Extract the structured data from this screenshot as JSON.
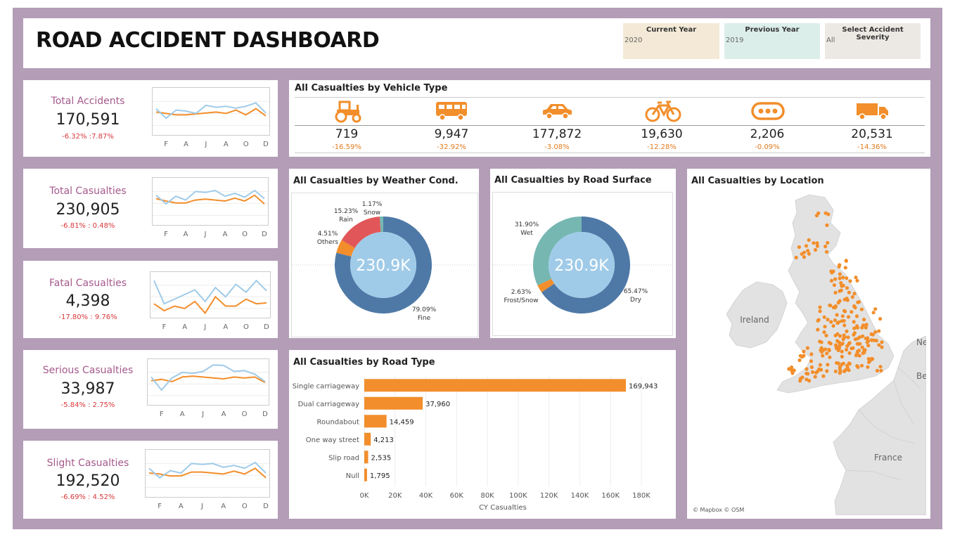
{
  "dashboard": {
    "title": "ROAD ACCIDENT DASHBOARD",
    "filters": [
      {
        "label": "Current Year",
        "value": "2020",
        "color": "#f3e9d6"
      },
      {
        "label": "Previous Year",
        "value": "2019",
        "color": "#dceeea"
      },
      {
        "label": "Select Accident Severity",
        "value": "All",
        "color": "#ece9e4"
      }
    ]
  },
  "colors": {
    "frame": "#b39db7",
    "orange": "#f28e2b",
    "blue": "#4e79a7",
    "light_blue": "#a0cbe8",
    "red": "#e15759",
    "teal": "#76b7b2",
    "kpi_name": "#a55a8c",
    "change": "#d9373a"
  },
  "kpis": [
    {
      "name": "Total Accidents",
      "value": "170,591",
      "change": "-6.32% :7.87%",
      "cy": [
        0.55,
        0.35,
        0.52,
        0.5,
        0.45,
        0.62,
        0.58,
        0.6,
        0.56,
        0.6,
        0.67,
        0.46
      ],
      "py": [
        0.48,
        0.45,
        0.42,
        0.42,
        0.44,
        0.46,
        0.48,
        0.45,
        0.52,
        0.42,
        0.55,
        0.4
      ]
    },
    {
      "name": "Total Casualties",
      "value": "230,905",
      "change": "-6.81% : 0.48%",
      "cy": [
        0.62,
        0.44,
        0.6,
        0.52,
        0.7,
        0.68,
        0.72,
        0.6,
        0.66,
        0.58,
        0.72,
        0.55
      ],
      "py": [
        0.55,
        0.5,
        0.46,
        0.46,
        0.52,
        0.54,
        0.52,
        0.5,
        0.56,
        0.5,
        0.62,
        0.44
      ]
    },
    {
      "name": "Fatal Casualties",
      "value": "4,398",
      "change": "-17.80% : 9.76%",
      "cy": [
        0.8,
        0.3,
        0.4,
        0.5,
        0.6,
        0.35,
        0.65,
        0.45,
        0.72,
        0.55,
        0.8,
        0.58
      ],
      "py": [
        0.3,
        0.15,
        0.25,
        0.2,
        0.35,
        0.1,
        0.45,
        0.25,
        0.25,
        0.4,
        0.3,
        0.32
      ]
    },
    {
      "name": "Serious Casualties",
      "value": "33,987",
      "change": "-5.84% : 2.75%",
      "cy": [
        0.6,
        0.32,
        0.58,
        0.7,
        0.68,
        0.72,
        0.86,
        0.85,
        0.72,
        0.74,
        0.66,
        0.5
      ],
      "py": [
        0.52,
        0.55,
        0.5,
        0.6,
        0.62,
        0.6,
        0.58,
        0.56,
        0.6,
        0.58,
        0.6,
        0.48
      ]
    },
    {
      "name": "Slight Casualties",
      "value": "192,520",
      "change": "-6.69% : 4.52%",
      "cy": [
        0.6,
        0.4,
        0.55,
        0.5,
        0.7,
        0.68,
        0.7,
        0.62,
        0.66,
        0.6,
        0.72,
        0.5
      ],
      "py": [
        0.5,
        0.48,
        0.44,
        0.44,
        0.52,
        0.52,
        0.5,
        0.48,
        0.54,
        0.48,
        0.6,
        0.4
      ]
    }
  ],
  "month_ticks": [
    "F",
    "A",
    "J",
    "A",
    "O",
    "D"
  ],
  "vehicles": {
    "title": "All Casualties by Vehicle Type",
    "items": [
      {
        "icon": "tractor-icon",
        "value": "719",
        "change": "-16.59%"
      },
      {
        "icon": "bus-icon",
        "value": "9,947",
        "change": "-32.92%"
      },
      {
        "icon": "car-icon",
        "value": "177,872",
        "change": "-3.08%"
      },
      {
        "icon": "bicycle-icon",
        "value": "19,630",
        "change": "-12.28%"
      },
      {
        "icon": "other-vehicle-icon",
        "value": "2,206",
        "change": "-0.09%"
      },
      {
        "icon": "truck-icon",
        "value": "20,531",
        "change": "-14.36%"
      }
    ]
  },
  "weather": {
    "title": "All Casualties by Weather Cond.",
    "center": "230.9K"
  },
  "surface": {
    "title": "All Casualties by Road Surface",
    "center": "230.9K"
  },
  "road_type": {
    "title": "All Casualties by Road Type"
  },
  "location": {
    "title": "All Casualties by Location",
    "attribution": "© Mapbox © OSM",
    "labels": {
      "ireland": "Ireland",
      "france": "France",
      "net": "Net",
      "bel": "Bel"
    }
  },
  "chart_data": [
    {
      "type": "pie",
      "title": "All Casualties by Weather Cond.",
      "categories": [
        "Fine",
        "Rain",
        "Others",
        "Snow"
      ],
      "values": [
        79.09,
        15.23,
        4.51,
        1.17
      ],
      "unit": "%",
      "colors": [
        "#4e79a7",
        "#e15759",
        "#f28e2b",
        "#76b7b2"
      ],
      "center_label": "230.9K"
    },
    {
      "type": "pie",
      "title": "All Casualties by Road Surface",
      "categories": [
        "Dry",
        "Wet",
        "Frost/Snow"
      ],
      "values": [
        65.47,
        31.9,
        2.63
      ],
      "unit": "%",
      "colors": [
        "#4e79a7",
        "#76b7b2",
        "#f28e2b"
      ],
      "center_label": "230.9K"
    },
    {
      "type": "bar",
      "title": "All Casualties by Road Type",
      "orientation": "horizontal",
      "categories": [
        "Single carriageway",
        "Dual carriageway",
        "Roundabout",
        "One way street",
        "Slip road",
        "Null"
      ],
      "values": [
        169943,
        37960,
        14459,
        4213,
        2535,
        1795
      ],
      "value_labels": [
        "169,943",
        "37,960",
        "14,459",
        "4,213",
        "2,535",
        "1,795"
      ],
      "xlabel": "CY Casualties",
      "xlim": [
        0,
        180000
      ],
      "xticks": [
        "0K",
        "20K",
        "40K",
        "60K",
        "80K",
        "100K",
        "120K",
        "140K",
        "160K",
        "180K"
      ]
    }
  ]
}
